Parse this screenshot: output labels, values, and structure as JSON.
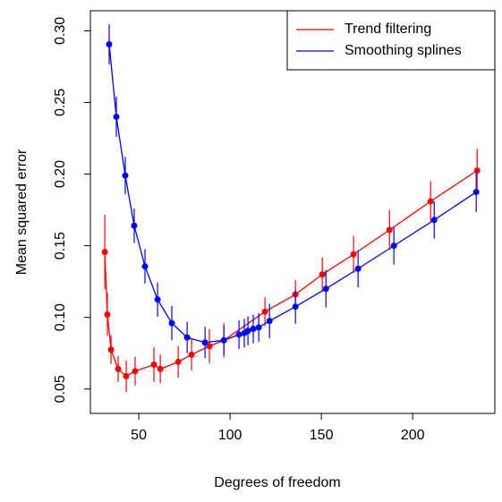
{
  "chart_data": {
    "type": "line",
    "xlabel": "Degrees of freedom",
    "ylabel": "Mean squared error",
    "xlim": [
      23.5,
      245
    ],
    "ylim": [
      0.033,
      0.314
    ],
    "xticks": [
      50,
      100,
      150,
      200
    ],
    "yticks": [
      0.05,
      {
        "value": 0.1,
        "label": "0.10"
      },
      0.15,
      {
        "value": 0.2,
        "label": "0.20"
      },
      0.25,
      {
        "value": 0.3,
        "label": "0.30"
      }
    ],
    "legend_position": "top-right",
    "series": [
      {
        "name": "Trend filtering",
        "color": "#ff0000",
        "x": [
          31.4,
          32.8,
          34.8,
          38.7,
          43.1,
          48.0,
          58.3,
          61.8,
          71.6,
          78.9,
          88.7,
          96.6,
          119.1,
          135.8,
          150.5,
          167.6,
          187.3,
          209.8,
          235.3
        ],
        "values": [
          0.1456,
          0.102,
          0.0775,
          0.064,
          0.059,
          0.0625,
          0.067,
          0.064,
          0.069,
          0.074,
          0.08,
          0.084,
          0.104,
          0.116,
          0.13,
          0.144,
          0.161,
          0.181,
          0.2025
        ],
        "errors": [
          0.026,
          0.015,
          0.01,
          0.009,
          0.011,
          0.01,
          0.012,
          0.01,
          0.011,
          0.011,
          0.012,
          0.012,
          0.01,
          0.01,
          0.012,
          0.013,
          0.014,
          0.014,
          0.015
        ]
      },
      {
        "name": "Smoothing splines",
        "color": "#0000ff",
        "x": [
          33.8,
          37.7,
          42.6,
          47.5,
          53.4,
          60.3,
          68.1,
          76.5,
          86.3,
          96.6,
          104.9,
          107.8,
          109.8,
          112.7,
          115.7,
          121.6,
          135.8,
          152.5,
          170.1,
          189.7,
          211.8,
          234.8
        ],
        "values": [
          0.2906,
          0.24,
          0.199,
          0.164,
          0.1356,
          0.1125,
          0.096,
          0.086,
          0.0825,
          0.084,
          0.088,
          0.089,
          0.0906,
          0.092,
          0.093,
          0.0975,
          0.1075,
          0.12,
          0.134,
          0.15,
          0.168,
          0.1875
        ],
        "errors": [
          0.014,
          0.014,
          0.013,
          0.012,
          0.012,
          0.012,
          0.012,
          0.011,
          0.011,
          0.01,
          0.01,
          0.01,
          0.01,
          0.01,
          0.01,
          0.012,
          0.012,
          0.013,
          0.013,
          0.013,
          0.013,
          0.014
        ]
      }
    ]
  }
}
